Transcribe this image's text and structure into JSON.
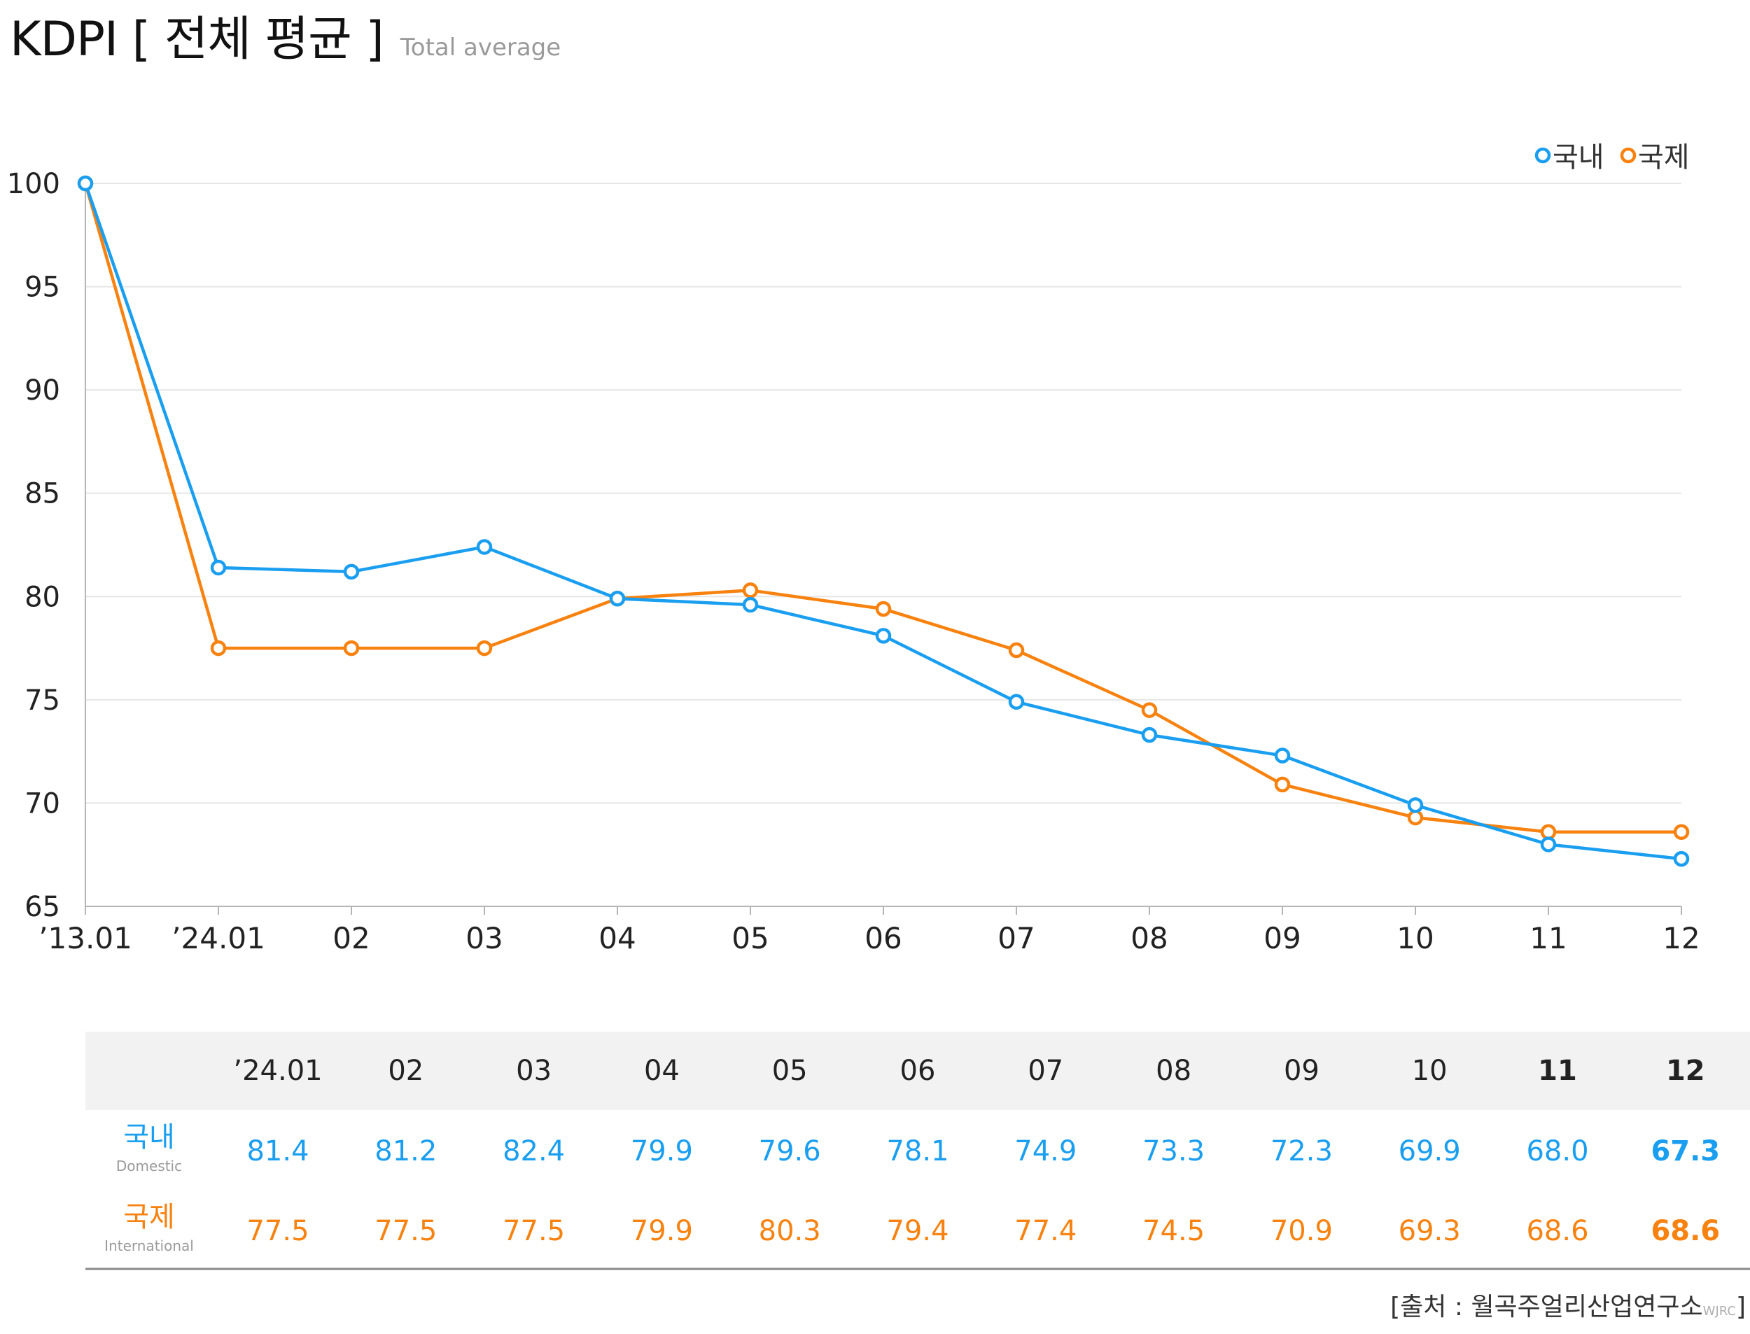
{
  "header": {
    "title": "KDPI [ 전체 평균 ]",
    "subtitle": "Total average"
  },
  "colors": {
    "domestic": "#1a9ef0",
    "international": "#f7820f",
    "grid": "#e6e6e6",
    "axis": "#b5b5b5",
    "table_header_bg": "#f2f2f2",
    "table_rule": "#8a8a8a"
  },
  "chart_data": {
    "type": "line",
    "categories": [
      "’13.01",
      "’24.01",
      "02",
      "03",
      "04",
      "05",
      "06",
      "07",
      "08",
      "09",
      "10",
      "11",
      "12"
    ],
    "series": [
      {
        "name": "국내",
        "color": "#1a9ef0",
        "values": [
          100,
          81.4,
          81.2,
          82.4,
          79.9,
          79.6,
          78.1,
          74.9,
          73.3,
          72.3,
          69.9,
          68.0,
          67.3
        ]
      },
      {
        "name": "국제",
        "color": "#f7820f",
        "values": [
          100,
          77.5,
          77.5,
          77.5,
          79.9,
          80.3,
          79.4,
          77.4,
          74.5,
          70.9,
          69.3,
          68.6,
          68.6
        ]
      }
    ],
    "ylim": [
      65,
      100
    ],
    "yticks": [
      65,
      70,
      75,
      80,
      85,
      90,
      95,
      100
    ],
    "grid": true,
    "legend": "top-right"
  },
  "table": {
    "columns": [
      "’24.01",
      "02",
      "03",
      "04",
      "05",
      "06",
      "07",
      "08",
      "09",
      "10",
      "11",
      "12"
    ],
    "bold_columns": [
      10,
      11
    ],
    "rows": [
      {
        "label": "국내",
        "sublabel": "Domestic",
        "color": "#1a9ef0",
        "values": [
          "81.4",
          "81.2",
          "82.4",
          "79.9",
          "79.6",
          "78.1",
          "74.9",
          "73.3",
          "72.3",
          "69.9",
          "68.0",
          "67.3"
        ]
      },
      {
        "label": "국제",
        "sublabel": "International",
        "color": "#f7820f",
        "values": [
          "77.5",
          "77.5",
          "77.5",
          "79.9",
          "80.3",
          "79.4",
          "77.4",
          "74.5",
          "70.9",
          "69.3",
          "68.6",
          "68.6"
        ]
      }
    ]
  },
  "source": {
    "text": "[출처 : 월곡주얼리산업연구소",
    "tag": "WJRC",
    "close": "]"
  }
}
